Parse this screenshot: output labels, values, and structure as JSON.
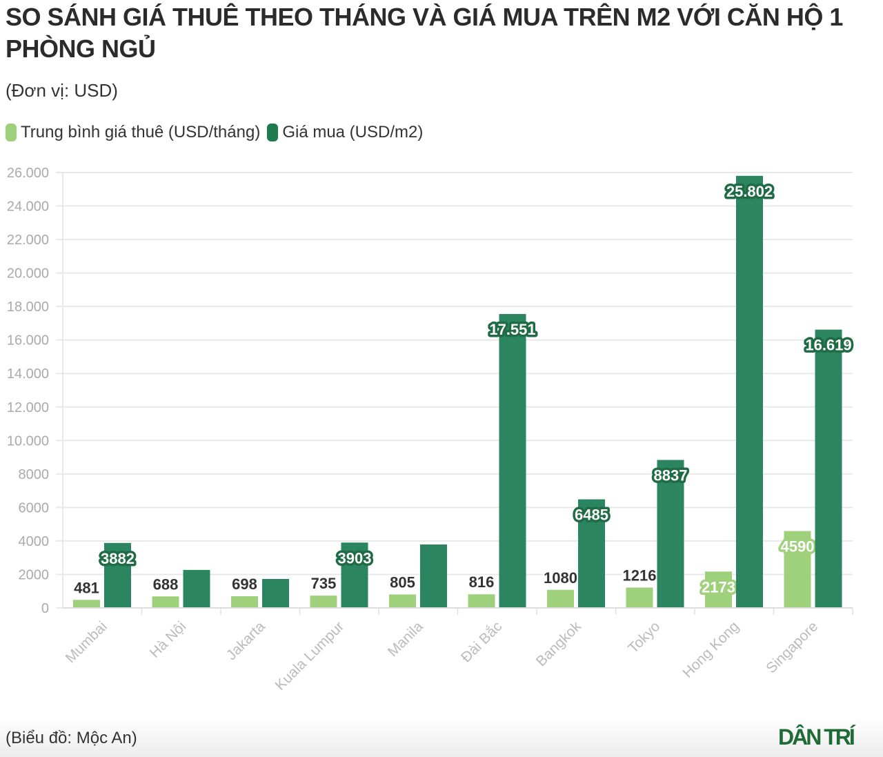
{
  "chart_data": {
    "type": "bar",
    "title": "SO SÁNH GIÁ THUÊ THEO THÁNG VÀ GIÁ MUA TRÊN M2 VỚI CĂN HỘ 1 PHÒNG NGỦ",
    "subtitle": "(Đơn vị: USD)",
    "categories": [
      "Mumbai",
      "Hà Nội",
      "Jakarta",
      "Kuala Lumpur",
      "Manila",
      "Đài Bắc",
      "Bangkok",
      "Tokyo",
      "Hong Kong",
      "Singapore"
    ],
    "series": [
      {
        "name": "Trung bình giá thuê (USD/tháng)",
        "color": "#9fd07b",
        "values": [
          481,
          688,
          698,
          735,
          805,
          816,
          1080,
          1216,
          2173,
          4590
        ],
        "labels": [
          "481",
          "688",
          "698",
          "735",
          "805",
          "816",
          "1080",
          "1216",
          "2173",
          "4590"
        ]
      },
      {
        "name": "Giá mua (USD/m2)",
        "color": "#2a8560",
        "values": [
          3882,
          2270,
          1730,
          3903,
          3790,
          17551,
          6485,
          8837,
          25802,
          16619
        ],
        "labels": [
          "3882",
          "",
          "",
          "3903",
          "",
          "17.551",
          "6485",
          "8837",
          "25.802",
          "16.619"
        ]
      }
    ],
    "ylim": [
      0,
      26000
    ],
    "yticks": [
      0,
      2000,
      4000,
      6000,
      8000,
      10000,
      12000,
      14000,
      16000,
      18000,
      20000,
      22000,
      24000,
      26000
    ],
    "ytick_labels": [
      "0",
      "2000",
      "4000",
      "6000",
      "8000",
      "10.000",
      "12.000",
      "14.000",
      "16.000",
      "18.000",
      "20.000",
      "22.000",
      "24.000",
      "26.000"
    ],
    "grid": true,
    "legend": "top-left"
  },
  "footer": {
    "source": "(Biểu đồ: Mộc An)",
    "logo": "DÂN TRÍ"
  }
}
